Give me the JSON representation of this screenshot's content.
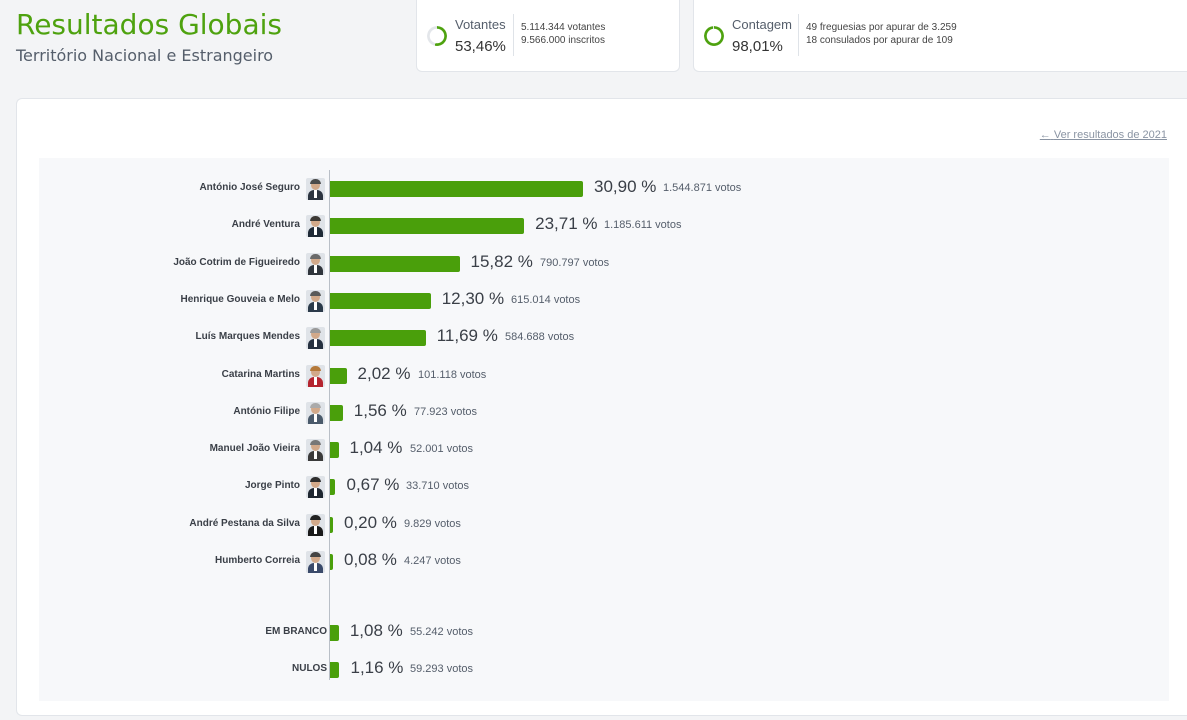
{
  "header": {
    "title": "Resultados Globais",
    "subtitle": "Território Nacional e Estrangeiro"
  },
  "votantes": {
    "label": "Votantes",
    "value": "53,46%",
    "progress": 0.5346,
    "detail1": "5.114.344 votantes",
    "detail2": "9.566.000 inscritos"
  },
  "contagem": {
    "label": "Contagem",
    "value": "98,01%",
    "progress": 0.9801,
    "detail1": "49 freguesias por apurar de 3.259",
    "detail2": "18 consulados por apurar de 109"
  },
  "prev_link": "Ver resultados de 2021",
  "colors": {
    "accent": "#4ea20f",
    "bar": "#4a9f0b"
  },
  "chart_data": {
    "type": "bar",
    "orientation": "horizontal",
    "scale_max_percent": 40,
    "candidates": [
      {
        "name": "António José Seguro",
        "pct": "30,90 %",
        "value": 30.9,
        "votes": "1.544.871 votos"
      },
      {
        "name": "André Ventura",
        "pct": "23,71 %",
        "value": 23.71,
        "votes": "1.185.611 votos"
      },
      {
        "name": "João Cotrim de Figueiredo",
        "pct": "15,82 %",
        "value": 15.82,
        "votes": "790.797 votos"
      },
      {
        "name": "Henrique Gouveia e Melo",
        "pct": "12,30 %",
        "value": 12.3,
        "votes": "615.014 votos"
      },
      {
        "name": "Luís Marques Mendes",
        "pct": "11,69 %",
        "value": 11.69,
        "votes": "584.688 votos"
      },
      {
        "name": "Catarina Martins",
        "pct": "2,02 %",
        "value": 2.02,
        "votes": "101.118 votos"
      },
      {
        "name": "António Filipe",
        "pct": "1,56 %",
        "value": 1.56,
        "votes": "77.923 votos"
      },
      {
        "name": "Manuel João Vieira",
        "pct": "1,04 %",
        "value": 1.04,
        "votes": "52.001 votos"
      },
      {
        "name": "Jorge Pinto",
        "pct": "0,67 %",
        "value": 0.67,
        "votes": "33.710 votos"
      },
      {
        "name": "André Pestana da Silva",
        "pct": "0,20 %",
        "value": 0.2,
        "votes": "9.829 votos"
      },
      {
        "name": "Humberto Correia",
        "pct": "0,08 %",
        "value": 0.08,
        "votes": "4.247 votos"
      }
    ],
    "others": [
      {
        "name": "EM BRANCO",
        "pct": "1,08 %",
        "value": 1.08,
        "votes": "55.242 votos"
      },
      {
        "name": "NULOS",
        "pct": "1,16 %",
        "value": 1.16,
        "votes": "59.293 votos"
      }
    ]
  }
}
